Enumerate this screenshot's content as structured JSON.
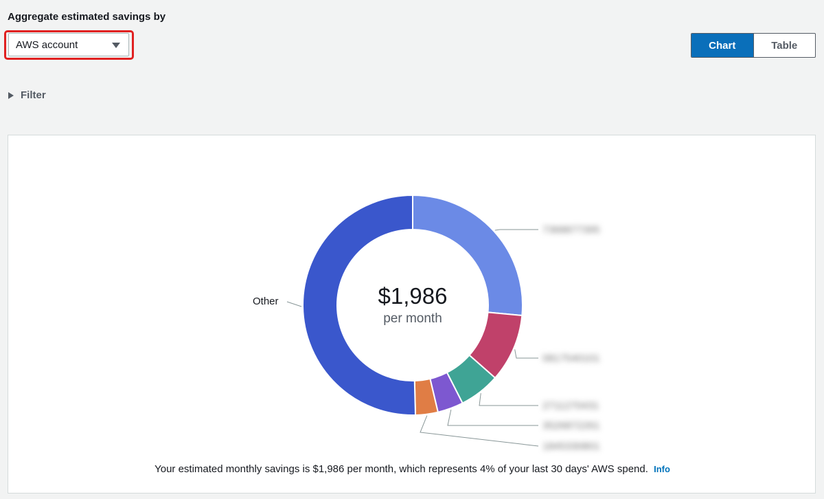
{
  "header": {
    "aggregate_label": "Aggregate estimated savings by",
    "aggregate_select_value": "AWS account",
    "view_toggle": {
      "chart_label": "Chart",
      "table_label": "Table",
      "selected": "Chart"
    },
    "filter_label": "Filter"
  },
  "chart": {
    "center_amount": "$1,986",
    "center_sub": "per month",
    "other_label": "Other",
    "summary_text": "Your estimated monthly savings is $1,986 per month, which represents 4% of your last 30 days' AWS spend.",
    "info_link": "Info"
  },
  "chart_data": {
    "type": "pie",
    "donut": true,
    "unit": "USD per month",
    "total": 1986,
    "slices": [
      {
        "label": "7368877395",
        "share": 0.265,
        "color": "#6b8ae6"
      },
      {
        "label": "0817540101",
        "share": 0.1,
        "color": "#c0416a"
      },
      {
        "label": "2711270431",
        "share": 0.06,
        "color": "#3fa495"
      },
      {
        "label": "3526872261",
        "share": 0.038,
        "color": "#7d58d0"
      },
      {
        "label": "1845330801",
        "share": 0.033,
        "color": "#e07d45"
      },
      {
        "label": "Other",
        "share": 0.504,
        "color": "#3a57cc"
      }
    ]
  }
}
